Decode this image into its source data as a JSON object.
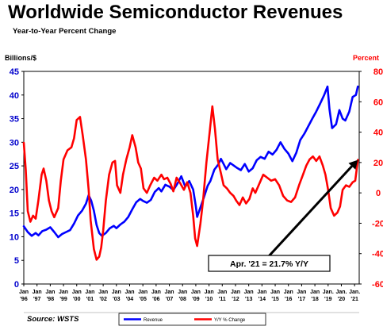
{
  "title": "Worldwide Semiconductor Revenues",
  "subtitle": "Year-to-Year Percent Change",
  "source": "Source: WSTS",
  "chart_data": {
    "type": "line",
    "y_left_label": "Billions/$",
    "y_right_label": "Percent",
    "y_left_ticks": [
      "0",
      "5",
      "10",
      "15",
      "20",
      "25",
      "30",
      "35",
      "40",
      "45"
    ],
    "y_right_ticks": [
      "-60",
      "-40",
      "-20",
      "0",
      "20",
      "40",
      "60",
      "80"
    ],
    "ylim_left": [
      0,
      45
    ],
    "ylim_right": [
      -60,
      80
    ],
    "xlim": [
      1996.0,
      2021.35
    ],
    "x_ticks": [
      {
        "top": "Jan",
        "bottom": "'96",
        "x": 1996
      },
      {
        "top": "Jan",
        "bottom": "'97",
        "x": 1997
      },
      {
        "top": "Jan",
        "bottom": "'98",
        "x": 1998
      },
      {
        "top": "Jan",
        "bottom": "'99",
        "x": 1999
      },
      {
        "top": "Jan",
        "bottom": "'00",
        "x": 2000
      },
      {
        "top": "Jan",
        "bottom": "'01",
        "x": 2001
      },
      {
        "top": "Jan",
        "bottom": "'02",
        "x": 2002
      },
      {
        "top": "Jan",
        "bottom": "'03",
        "x": 2003
      },
      {
        "top": "Jan",
        "bottom": "'04",
        "x": 2004
      },
      {
        "top": "Jan",
        "bottom": "'05",
        "x": 2005
      },
      {
        "top": "Jan",
        "bottom": "'06",
        "x": 2006
      },
      {
        "top": "Jan",
        "bottom": "'07",
        "x": 2007
      },
      {
        "top": "Jan",
        "bottom": "'08",
        "x": 2008
      },
      {
        "top": "Jan",
        "bottom": "'09",
        "x": 2009
      },
      {
        "top": "Jan",
        "bottom": "'10",
        "x": 2010
      },
      {
        "top": "Jan",
        "bottom": "'11",
        "x": 2011
      },
      {
        "top": "Jan",
        "bottom": "'12",
        "x": 2012
      },
      {
        "top": "Jan",
        "bottom": "'13",
        "x": 2013
      },
      {
        "top": "Jan",
        "bottom": "'14",
        "x": 2014
      },
      {
        "top": "Jan",
        "bottom": "'15",
        "x": 2015
      },
      {
        "top": "Jan",
        "bottom": "'16",
        "x": 2016
      },
      {
        "top": "Jan",
        "bottom": "'17",
        "x": 2017
      },
      {
        "top": "Jan",
        "bottom": "'18",
        "x": 2018
      },
      {
        "top": "Jan.",
        "bottom": "'19",
        "x": 2019
      },
      {
        "top": "Jan.",
        "bottom": "'20",
        "x": 2020
      },
      {
        "top": "Jan.",
        "bottom": "'21",
        "x": 2021
      }
    ],
    "series": [
      {
        "name": "Revenue",
        "axis": "left",
        "color": "#0000ff",
        "points": [
          [
            1996.0,
            12.2
          ],
          [
            1996.3,
            11.0
          ],
          [
            1996.6,
            10.2
          ],
          [
            1996.9,
            10.8
          ],
          [
            1997.1,
            10.3
          ],
          [
            1997.4,
            11.2
          ],
          [
            1997.7,
            11.5
          ],
          [
            1998.0,
            12.0
          ],
          [
            1998.3,
            11.0
          ],
          [
            1998.6,
            9.9
          ],
          [
            1998.9,
            10.6
          ],
          [
            1999.2,
            11.0
          ],
          [
            1999.5,
            11.4
          ],
          [
            1999.8,
            12.8
          ],
          [
            2000.1,
            14.5
          ],
          [
            2000.4,
            15.5
          ],
          [
            2000.7,
            17.0
          ],
          [
            2000.9,
            18.8
          ],
          [
            2001.1,
            17.6
          ],
          [
            2001.3,
            15.5
          ],
          [
            2001.5,
            12.5
          ],
          [
            2001.7,
            10.8
          ],
          [
            2001.9,
            10.2
          ],
          [
            2002.2,
            10.8
          ],
          [
            2002.5,
            11.8
          ],
          [
            2002.8,
            12.3
          ],
          [
            2003.0,
            11.8
          ],
          [
            2003.3,
            12.6
          ],
          [
            2003.6,
            13.2
          ],
          [
            2003.9,
            14.2
          ],
          [
            2004.2,
            15.8
          ],
          [
            2004.5,
            17.3
          ],
          [
            2004.8,
            18.0
          ],
          [
            2005.0,
            17.6
          ],
          [
            2005.3,
            17.2
          ],
          [
            2005.6,
            17.8
          ],
          [
            2005.9,
            19.5
          ],
          [
            2006.2,
            20.3
          ],
          [
            2006.4,
            19.6
          ],
          [
            2006.7,
            21.0
          ],
          [
            2007.0,
            20.6
          ],
          [
            2007.3,
            19.9
          ],
          [
            2007.6,
            21.2
          ],
          [
            2007.9,
            22.8
          ],
          [
            2008.2,
            20.6
          ],
          [
            2008.5,
            21.8
          ],
          [
            2008.8,
            20.0
          ],
          [
            2009.0,
            16.5
          ],
          [
            2009.1,
            14.2
          ],
          [
            2009.3,
            15.8
          ],
          [
            2009.6,
            18.2
          ],
          [
            2009.9,
            20.8
          ],
          [
            2010.1,
            21.8
          ],
          [
            2010.4,
            24.2
          ],
          [
            2010.7,
            25.3
          ],
          [
            2010.9,
            26.5
          ],
          [
            2011.1,
            25.4
          ],
          [
            2011.3,
            24.3
          ],
          [
            2011.6,
            25.6
          ],
          [
            2011.9,
            25.0
          ],
          [
            2012.1,
            24.6
          ],
          [
            2012.4,
            24.1
          ],
          [
            2012.7,
            25.4
          ],
          [
            2013.0,
            23.8
          ],
          [
            2013.3,
            24.5
          ],
          [
            2013.6,
            26.2
          ],
          [
            2013.9,
            26.9
          ],
          [
            2014.2,
            26.5
          ],
          [
            2014.5,
            28.0
          ],
          [
            2014.8,
            27.4
          ],
          [
            2015.1,
            28.4
          ],
          [
            2015.4,
            30.0
          ],
          [
            2015.7,
            28.6
          ],
          [
            2016.0,
            27.6
          ],
          [
            2016.3,
            26.0
          ],
          [
            2016.6,
            27.8
          ],
          [
            2016.9,
            30.5
          ],
          [
            2017.2,
            31.8
          ],
          [
            2017.5,
            33.4
          ],
          [
            2017.8,
            35.0
          ],
          [
            2018.1,
            36.5
          ],
          [
            2018.4,
            38.2
          ],
          [
            2018.7,
            40.0
          ],
          [
            2018.95,
            41.8
          ],
          [
            2019.1,
            37.0
          ],
          [
            2019.3,
            33.0
          ],
          [
            2019.6,
            33.8
          ],
          [
            2019.85,
            36.8
          ],
          [
            2020.1,
            35.0
          ],
          [
            2020.3,
            34.6
          ],
          [
            2020.6,
            36.5
          ],
          [
            2020.85,
            39.6
          ],
          [
            2021.1,
            40.0
          ],
          [
            2021.25,
            41.8
          ]
        ]
      },
      {
        "name": "Y/Y % Change",
        "axis": "right",
        "color": "#ff0000",
        "points": [
          [
            1996.0,
            33
          ],
          [
            1996.15,
            15
          ],
          [
            1996.3,
            -12
          ],
          [
            1996.5,
            -19
          ],
          [
            1996.7,
            -15
          ],
          [
            1996.9,
            -17
          ],
          [
            1997.1,
            -5
          ],
          [
            1997.35,
            12
          ],
          [
            1997.5,
            16
          ],
          [
            1997.7,
            8
          ],
          [
            1997.9,
            -5
          ],
          [
            1998.1,
            -12
          ],
          [
            1998.3,
            -16
          ],
          [
            1998.6,
            -10
          ],
          [
            1998.8,
            8
          ],
          [
            1999.0,
            22
          ],
          [
            1999.3,
            28
          ],
          [
            1999.6,
            30
          ],
          [
            1999.8,
            36
          ],
          [
            2000.0,
            48
          ],
          [
            2000.25,
            50
          ],
          [
            2000.45,
            38
          ],
          [
            2000.7,
            22
          ],
          [
            2000.9,
            2
          ],
          [
            2001.05,
            -18
          ],
          [
            2001.3,
            -37
          ],
          [
            2001.5,
            -44
          ],
          [
            2001.7,
            -42
          ],
          [
            2001.85,
            -36
          ],
          [
            2002.0,
            -25
          ],
          [
            2002.2,
            -5
          ],
          [
            2002.45,
            12
          ],
          [
            2002.7,
            20
          ],
          [
            2002.9,
            21
          ],
          [
            2003.05,
            5
          ],
          [
            2003.3,
            0
          ],
          [
            2003.5,
            12
          ],
          [
            2003.75,
            22
          ],
          [
            2004.0,
            30
          ],
          [
            2004.2,
            38
          ],
          [
            2004.45,
            30
          ],
          [
            2004.65,
            20
          ],
          [
            2004.85,
            16
          ],
          [
            2005.05,
            3
          ],
          [
            2005.3,
            0
          ],
          [
            2005.55,
            5
          ],
          [
            2005.85,
            10
          ],
          [
            2006.1,
            8
          ],
          [
            2006.4,
            12
          ],
          [
            2006.6,
            9
          ],
          [
            2006.85,
            10
          ],
          [
            2007.1,
            6
          ],
          [
            2007.3,
            1
          ],
          [
            2007.55,
            10
          ],
          [
            2007.85,
            6
          ],
          [
            2008.1,
            2
          ],
          [
            2008.35,
            7
          ],
          [
            2008.6,
            0
          ],
          [
            2008.8,
            -15
          ],
          [
            2008.95,
            -30
          ],
          [
            2009.1,
            -35
          ],
          [
            2009.35,
            -20
          ],
          [
            2009.55,
            -5
          ],
          [
            2009.8,
            20
          ],
          [
            2010.05,
            40
          ],
          [
            2010.25,
            57
          ],
          [
            2010.45,
            42
          ],
          [
            2010.65,
            22
          ],
          [
            2010.9,
            13
          ],
          [
            2011.1,
            5
          ],
          [
            2011.35,
            3
          ],
          [
            2011.6,
            0
          ],
          [
            2011.85,
            -2
          ],
          [
            2012.05,
            -5
          ],
          [
            2012.3,
            -8
          ],
          [
            2012.55,
            -3
          ],
          [
            2012.8,
            -7
          ],
          [
            2013.05,
            -4
          ],
          [
            2013.3,
            3
          ],
          [
            2013.5,
            0
          ],
          [
            2013.8,
            6
          ],
          [
            2014.1,
            12
          ],
          [
            2014.4,
            10
          ],
          [
            2014.7,
            8
          ],
          [
            2015.0,
            9
          ],
          [
            2015.3,
            5
          ],
          [
            2015.6,
            -2
          ],
          [
            2015.9,
            -5
          ],
          [
            2016.2,
            -6
          ],
          [
            2016.5,
            -3
          ],
          [
            2016.8,
            5
          ],
          [
            2017.1,
            12
          ],
          [
            2017.35,
            18
          ],
          [
            2017.6,
            22
          ],
          [
            2017.85,
            24
          ],
          [
            2018.1,
            21
          ],
          [
            2018.35,
            24
          ],
          [
            2018.6,
            18
          ],
          [
            2018.8,
            12
          ],
          [
            2019.0,
            2
          ],
          [
            2019.2,
            -10
          ],
          [
            2019.45,
            -15
          ],
          [
            2019.7,
            -13
          ],
          [
            2019.9,
            -9
          ],
          [
            2020.1,
            2
          ],
          [
            2020.35,
            5
          ],
          [
            2020.6,
            4
          ],
          [
            2020.85,
            7
          ],
          [
            2021.05,
            8
          ],
          [
            2021.25,
            21.7
          ]
        ]
      }
    ],
    "legend": [
      "Revenue",
      "Y/Y % Change"
    ],
    "legend_position": "bottom-center",
    "annotation": {
      "text": "Apr. '21 = 21.7% Y/Y",
      "point_x": 2021.25,
      "point_y_right": 21.7
    }
  }
}
